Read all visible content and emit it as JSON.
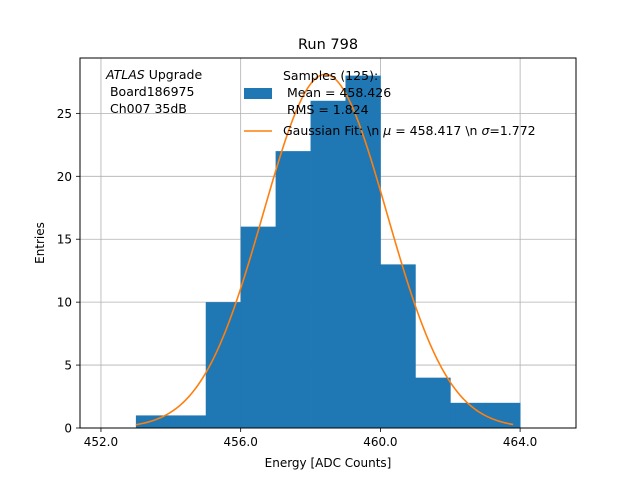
{
  "chart_data": {
    "type": "bar",
    "title": "Run 798",
    "xlabel": "Energy [ADC Counts]",
    "ylabel": "Entries",
    "xlim": [
      451.4,
      465.6
    ],
    "ylim": [
      0,
      29.4
    ],
    "grid": true,
    "x_ticks": [
      452,
      456,
      460,
      464
    ],
    "x_tick_labels": [
      "452.0",
      "456.0",
      "460.0",
      "464.0"
    ],
    "y_ticks": [
      0,
      5,
      10,
      15,
      20,
      25
    ],
    "y_tick_labels": [
      "0",
      "5",
      "10",
      "15",
      "20",
      "25"
    ],
    "bin_edges": [
      453,
      454,
      455,
      456,
      457,
      458,
      459,
      460,
      461,
      462,
      463,
      464
    ],
    "counts": [
      1,
      1,
      10,
      16,
      22,
      26,
      28,
      13,
      4,
      2,
      2
    ],
    "histogram_color": "#1f77b4",
    "fit": {
      "name": "Gaussian Fit: \\n $\\mu$ = 458.417 \\n $\\sigma$=1.772",
      "mu": 458.417,
      "sigma": 1.772,
      "amplitude": 28.1,
      "x_range": [
        453,
        463.8
      ],
      "color": "#ff7f0e"
    },
    "annotation": {
      "lines": [
        "Upgrade",
        " Board186975",
        " Ch007 35dB"
      ],
      "italic_prefix": "ATLAS"
    },
    "legend": {
      "placement": "top-right",
      "histogram_entry": {
        "lines": [
          "Samples (125):",
          " Mean = 458.426",
          " RMS = 1.824"
        ]
      },
      "fit_entry_prefix": "Gaussian Fit: \\n ",
      "fit_entry_mu": " = 458.417 \\n ",
      "fit_entry_sigma": "=1.772",
      "mu_symbol": "μ",
      "sigma_symbol": "σ"
    }
  }
}
